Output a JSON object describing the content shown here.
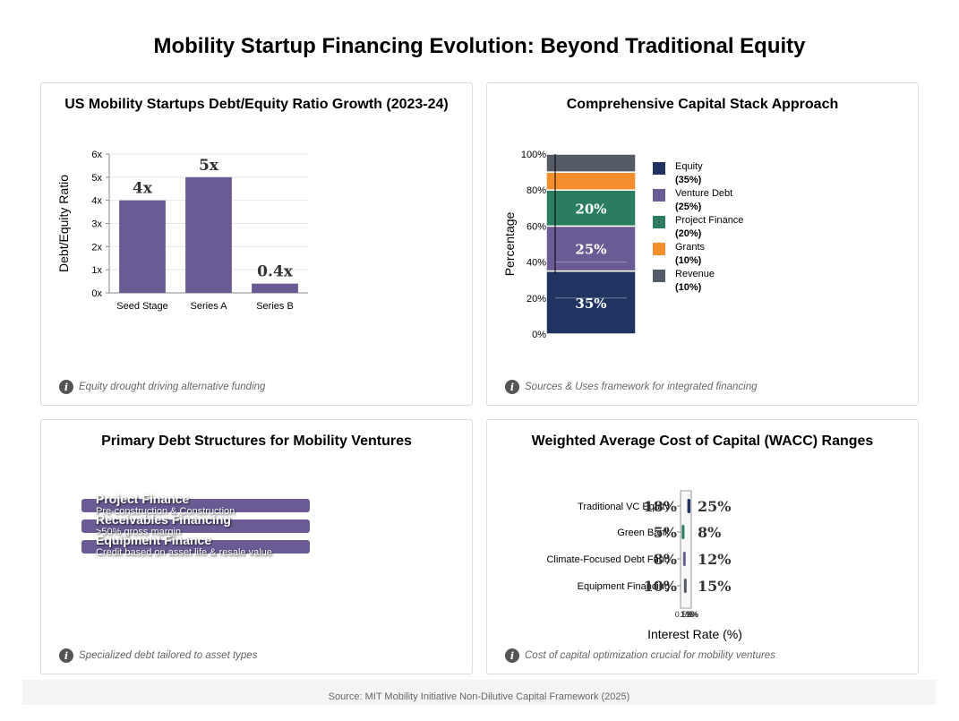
{
  "page": {
    "title": "Mobility Startup Financing Evolution: Beyond Traditional Equity",
    "source": "Source: MIT Mobility Initiative Non-Dilutive Capital Framework (2025)"
  },
  "panels": [
    {
      "title": "US Mobility Startups Debt/Equity Ratio Growth (2023-24)",
      "footnote": "Equity drought driving alternative funding"
    },
    {
      "title": "Comprehensive Capital Stack Approach",
      "footnote": "Sources & Uses framework for integrated financing"
    },
    {
      "title": "Primary Debt Structures for Mobility Ventures",
      "footnote": "Specialized debt tailored to asset types"
    },
    {
      "title": "Weighted Average Cost of Capital (WACC) Ranges",
      "footnote": "Cost of capital optimization crucial for mobility ventures"
    }
  ],
  "colors": {
    "bar": "#6b5b95",
    "equity": "#1f3461",
    "venture_debt": "#6b5b95",
    "project_finance": "#2a7d5f",
    "grants": "#f28e2b",
    "revenue": "#555b66"
  },
  "chart_data": [
    {
      "type": "bar",
      "title": "US Mobility Startups Debt/Equity Ratio Growth (2023-24)",
      "categories": [
        "Seed Stage",
        "Series A",
        "Series B"
      ],
      "values": [
        4,
        5,
        0.4
      ],
      "data_labels": [
        "4x",
        "5x",
        "0.4x"
      ],
      "ylabel": "Debt/Equity Ratio",
      "ylim": [
        0,
        6
      ],
      "yticks": [
        "0x",
        "1x",
        "2x",
        "3x",
        "4x",
        "5x",
        "6x"
      ],
      "grid": true
    },
    {
      "type": "bar",
      "stacked": true,
      "title": "Comprehensive Capital Stack Approach",
      "ylabel": "Percentage",
      "ylim": [
        0,
        100
      ],
      "yticks": [
        "0%",
        "20%",
        "40%",
        "60%",
        "80%",
        "100%"
      ],
      "series": [
        {
          "name": "Equity",
          "value": 35,
          "pct_label": "(35%)",
          "data_label": "35%",
          "color_key": "equity"
        },
        {
          "name": "Venture Debt",
          "value": 25,
          "pct_label": "(25%)",
          "data_label": "25%",
          "color_key": "venture_debt"
        },
        {
          "name": "Project Finance",
          "value": 20,
          "pct_label": "(20%)",
          "data_label": "20%",
          "color_key": "project_finance"
        },
        {
          "name": "Grants",
          "value": 10,
          "pct_label": "(10%)",
          "data_label": "",
          "color_key": "grants"
        },
        {
          "name": "Revenue",
          "value": 10,
          "pct_label": "(10%)",
          "data_label": "",
          "color_key": "revenue"
        }
      ],
      "legend": "right"
    },
    {
      "type": "bar",
      "orientation": "horizontal",
      "title": "Primary Debt Structures for Mobility Ventures",
      "items": [
        {
          "name": "Project Finance",
          "description": "Pre-construction & Construction"
        },
        {
          "name": "Receivables Financing",
          "description": ">50% gross margin"
        },
        {
          "name": "Equipment Finance",
          "description": "Credit based on asset life & resale value"
        }
      ]
    },
    {
      "type": "range",
      "title": "Weighted Average Cost of Capital (WACC) Ranges",
      "xlabel": "Interest Rate (%)",
      "xtick_labels": [
        "0.5%",
        "1%",
        "1.5%",
        "2%"
      ],
      "categories": [
        "Traditional VC Equity",
        "Green Bank",
        "Climate-Focused Debt Fund",
        "Equipment Financing"
      ],
      "ranges": [
        {
          "low": 18,
          "high": 25,
          "low_label": "18%",
          "high_label": "25%",
          "color": "#1f3461"
        },
        {
          "low": 5,
          "high": 8,
          "low_label": "5%",
          "high_label": "8%",
          "color": "#2a7d5f"
        },
        {
          "low": 8,
          "high": 12,
          "low_label": "8%",
          "high_label": "12%",
          "color": "#6b5b95"
        },
        {
          "low": 10,
          "high": 15,
          "low_label": "10%",
          "high_label": "15%",
          "color": "#555b66"
        }
      ]
    }
  ]
}
